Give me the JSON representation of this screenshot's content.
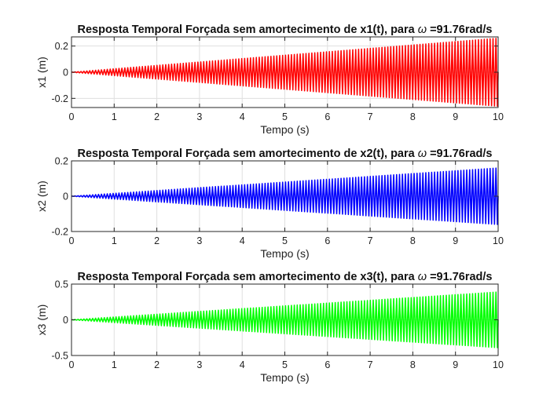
{
  "chart_data": [
    {
      "type": "line",
      "title_prefix": "Resposta Temporal Forçada sem amortecimento de x1(t), para ",
      "title_symbol": "ω",
      "title_suffix": " =91.76rad/s",
      "xlabel": "Tempo (s)",
      "ylabel": "x1 (m)",
      "xlim": [
        0,
        10
      ],
      "ylim": [
        -0.27,
        0.27
      ],
      "xticks": [
        0,
        1,
        2,
        3,
        4,
        5,
        6,
        7,
        8,
        9,
        10
      ],
      "yticks": [
        -0.2,
        0,
        0.2
      ],
      "ytick_labels": [
        "-0.2",
        "0",
        "0.2"
      ],
      "grid": true,
      "color": "#ff0000",
      "series": [
        {
          "x": [
            0,
            10
          ],
          "envelope_amplitude": [
            0,
            0.26
          ],
          "omega_rad_s": 91.76
        }
      ]
    },
    {
      "type": "line",
      "title_prefix": "Resposta Temporal Forçada sem amortecimento de x2(t), para ",
      "title_symbol": "ω",
      "title_suffix": " =91.76rad/s",
      "xlabel": "Tempo (s)",
      "ylabel": "x2 (m)",
      "xlim": [
        0,
        10
      ],
      "ylim": [
        -0.2,
        0.2
      ],
      "xticks": [
        0,
        1,
        2,
        3,
        4,
        5,
        6,
        7,
        8,
        9,
        10
      ],
      "yticks": [
        -0.2,
        0,
        0.2
      ],
      "ytick_labels": [
        "-0.2",
        "0",
        "0.2"
      ],
      "grid": true,
      "color": "#0000ff",
      "series": [
        {
          "x": [
            0,
            10
          ],
          "envelope_amplitude": [
            0,
            0.16
          ],
          "omega_rad_s": 91.76
        }
      ]
    },
    {
      "type": "line",
      "title_prefix": "Resposta Temporal Forçada sem amortecimento de x3(t), para ",
      "title_symbol": "ω",
      "title_suffix": " =91.76rad/s",
      "xlabel": "Tempo (s)",
      "ylabel": "x3 (m)",
      "xlim": [
        0,
        10
      ],
      "ylim": [
        -0.5,
        0.5
      ],
      "xticks": [
        0,
        1,
        2,
        3,
        4,
        5,
        6,
        7,
        8,
        9,
        10
      ],
      "yticks": [
        -0.5,
        0,
        0.5
      ],
      "ytick_labels": [
        "-0.5",
        "0",
        "0.5"
      ],
      "grid": true,
      "color": "#00ff00",
      "series": [
        {
          "x": [
            0,
            10
          ],
          "envelope_amplitude": [
            0,
            0.39
          ],
          "omega_rad_s": 91.76
        }
      ]
    }
  ]
}
